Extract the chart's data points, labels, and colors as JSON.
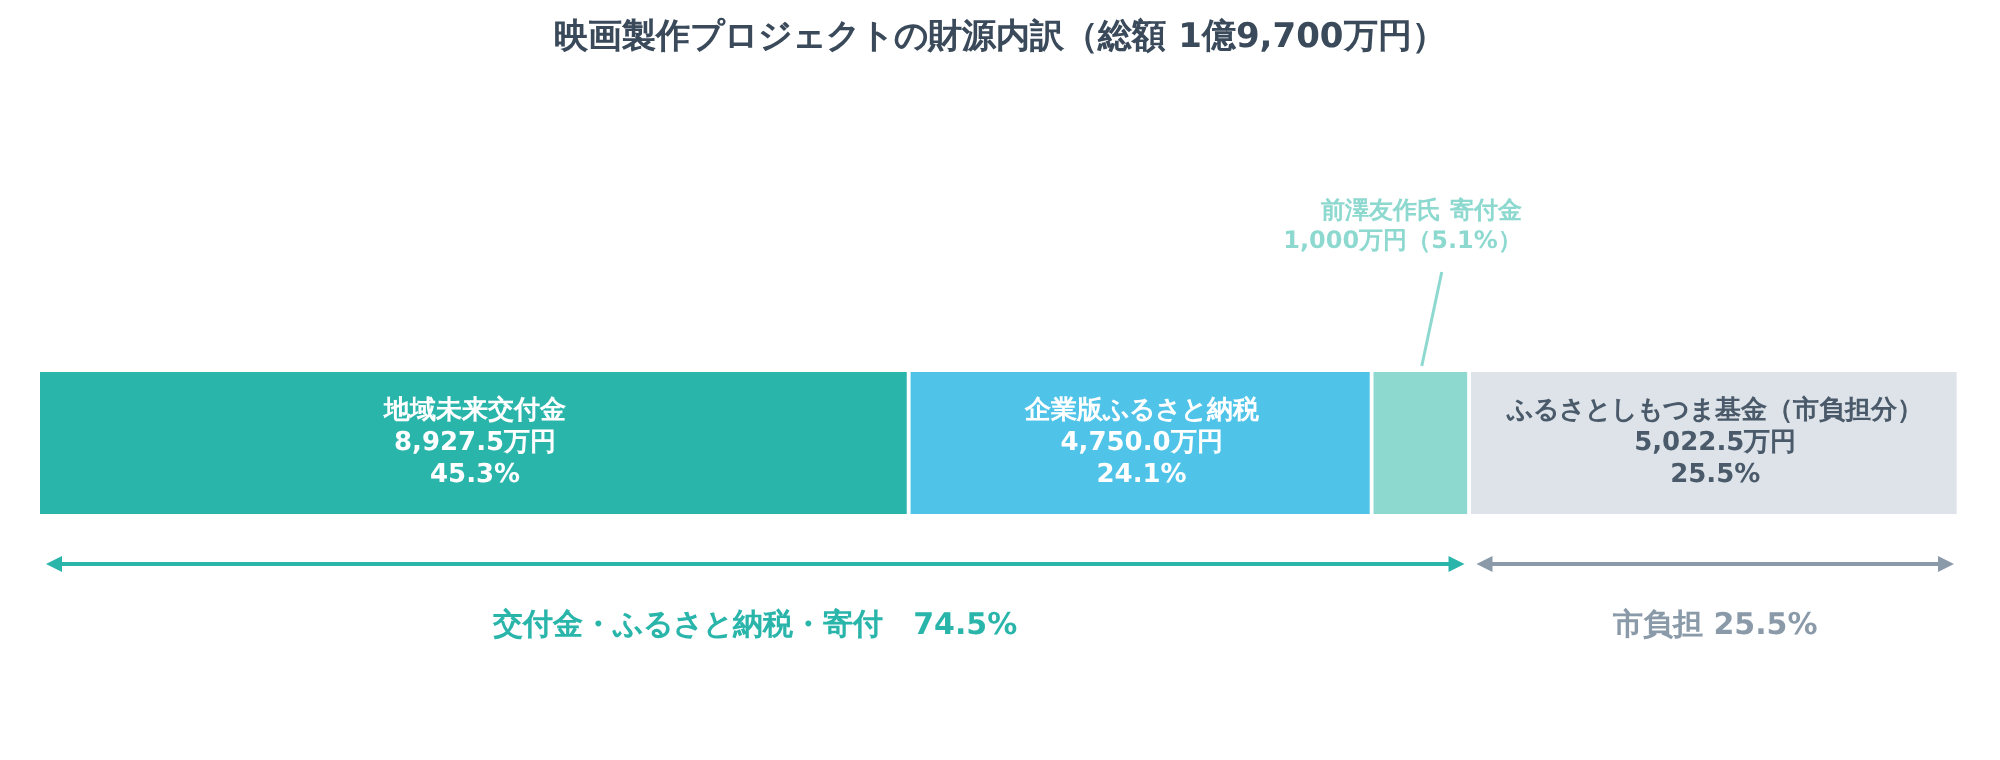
{
  "chart_data": {
    "type": "bar",
    "title": "映画製作プロジェクトの財源内訳（総額 1億9,700万円）",
    "orientation": "horizontal",
    "stacked": true,
    "categories": [
      null
    ],
    "xlim": [
      0,
      19700
    ],
    "tick_labels": false,
    "legend": false,
    "grid": false,
    "series": [
      {
        "name": "地域未来交付金",
        "color": "#2ab5ab",
        "values": [
          8927.5
        ],
        "value_labels": [
          "8,927.5万円\n45.3%"
        ]
      },
      {
        "name": "企業版ふるさと納税",
        "color": "#4fc3e8",
        "values": [
          4750.0
        ],
        "value_labels": [
          "4,750.0万円\n24.1%"
        ]
      },
      {
        "name": "前澤友作氏 寄付金",
        "color": "#8dd9d0",
        "values": [
          1000
        ],
        "value_labels": [
          "1,000万円（5.1%）"
        ]
      },
      {
        "name": "ふるさとしもつま基金（市負担分）",
        "color": "#dde3e8",
        "values": [
          5022.5
        ],
        "value_labels": [
          "5,022.5万円\n25.5%"
        ]
      }
    ],
    "annotations": [
      "交付金・ふるさと納税・寄付　74.5%",
      "市負担 25.5%"
    ]
  }
}
